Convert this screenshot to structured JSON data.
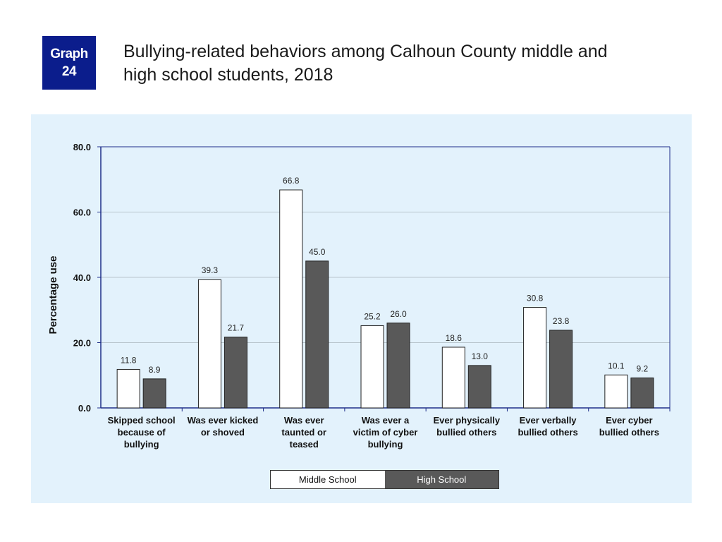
{
  "badge": {
    "line1": "Graph",
    "line2": "24"
  },
  "title": {
    "line1": "Bullying-related behaviors among Calhoun County middle and",
    "line2": "high school students, 2018"
  },
  "colors": {
    "badge": "#0b1d8c",
    "panel": "#e3f2fc",
    "middle_school": "#ffffff",
    "high_school": "#595959",
    "axis": "#1f2f8a"
  },
  "chart_data": {
    "type": "bar",
    "title": "",
    "xlabel": "",
    "ylabel": "Percentage use",
    "ylim": [
      0,
      80
    ],
    "yticks": [
      "0.0",
      "20.0",
      "40.0",
      "60.0",
      "80.0"
    ],
    "grid": true,
    "legend_position": "bottom",
    "categories": [
      [
        "Skipped school",
        "because of",
        "bullying"
      ],
      [
        "Was ever kicked",
        "or shoved"
      ],
      [
        "Was ever",
        "taunted or",
        "teased"
      ],
      [
        "Was ever a",
        "victim of cyber",
        "bullying"
      ],
      [
        "Ever physically",
        "bullied others"
      ],
      [
        "Ever verbally",
        "bullied others"
      ],
      [
        "Ever cyber",
        "bullied others"
      ]
    ],
    "series": [
      {
        "name": "Middle School",
        "values": [
          11.8,
          39.3,
          66.8,
          25.2,
          18.6,
          30.8,
          10.1
        ],
        "labels": [
          "11.8",
          "39.3",
          "66.8",
          "25.2",
          "18.6",
          "30.8",
          "10.1"
        ]
      },
      {
        "name": "High School",
        "values": [
          8.9,
          21.7,
          45.0,
          26.0,
          13.0,
          23.8,
          9.2
        ],
        "labels": [
          "8.9",
          "21.7",
          "45.0",
          "26.0",
          "13.0",
          "23.8",
          "9.2"
        ]
      }
    ]
  }
}
